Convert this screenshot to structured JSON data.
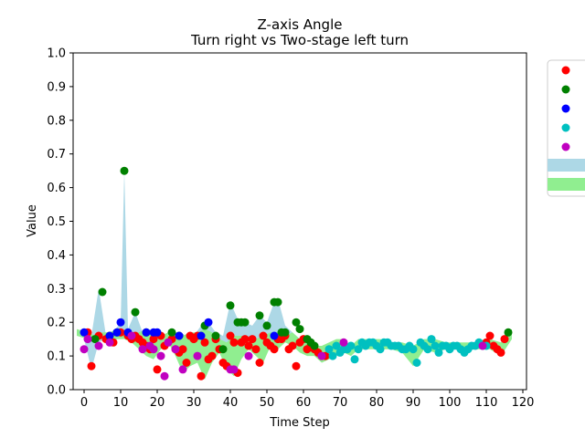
{
  "chart_data": {
    "type": "scatter",
    "title": "Z-axis Angle",
    "subtitle": "Turn right vs Two-stage left turn",
    "xlabel": "Time Step",
    "ylabel": "Value",
    "xlim": [
      -3,
      121
    ],
    "ylim": [
      0,
      1.0
    ],
    "xticks": [
      0,
      10,
      20,
      30,
      40,
      50,
      60,
      70,
      80,
      90,
      100,
      110,
      120
    ],
    "yticks": [
      0.0,
      0.1,
      0.2,
      0.3,
      0.4,
      0.5,
      0.6,
      0.7,
      0.8,
      0.9,
      1.0
    ],
    "grid": false,
    "legend_position": "outside-right",
    "bands": [
      {
        "name": "",
        "color": "#add8e6",
        "x": [
          0,
          2,
          4,
          6,
          8,
          10,
          11,
          12,
          14,
          16,
          18,
          20,
          22,
          24,
          26,
          28,
          30,
          32,
          34,
          36,
          38,
          40,
          42,
          44,
          46,
          48,
          50,
          52,
          53,
          55,
          57,
          59,
          61,
          63,
          65,
          66
        ],
        "lower": [
          0.15,
          0.06,
          0.14,
          0.15,
          0.16,
          0.16,
          0.16,
          0.15,
          0.14,
          0.13,
          0.12,
          0.11,
          0.13,
          0.15,
          0.12,
          0.11,
          0.15,
          0.15,
          0.14,
          0.13,
          0.11,
          0.1,
          0.12,
          0.14,
          0.13,
          0.14,
          0.14,
          0.15,
          0.16,
          0.15,
          0.14,
          0.13,
          0.12,
          0.11,
          0.09,
          0.09
        ],
        "upper": [
          0.17,
          0.16,
          0.3,
          0.16,
          0.17,
          0.2,
          0.65,
          0.18,
          0.23,
          0.17,
          0.16,
          0.17,
          0.16,
          0.17,
          0.17,
          0.16,
          0.16,
          0.19,
          0.2,
          0.17,
          0.16,
          0.26,
          0.21,
          0.2,
          0.19,
          0.22,
          0.2,
          0.26,
          0.27,
          0.19,
          0.17,
          0.15,
          0.13,
          0.12,
          0.11,
          0.1
        ]
      },
      {
        "name": "",
        "color": "#90ee90",
        "x": [
          -2,
          1,
          3,
          5,
          7,
          9,
          11,
          13,
          15,
          17,
          19,
          21,
          23,
          25,
          27,
          29,
          31,
          33,
          35,
          37,
          39,
          41,
          43,
          45,
          47,
          49,
          51,
          53,
          55,
          57,
          59,
          61,
          63,
          65,
          67,
          69,
          71,
          73,
          75,
          78,
          81,
          84,
          87,
          90,
          93,
          96,
          99,
          102,
          105,
          108,
          111,
          114,
          117
        ],
        "lower": [
          0.16,
          0.15,
          0.15,
          0.15,
          0.14,
          0.15,
          0.15,
          0.14,
          0.12,
          0.1,
          0.09,
          0.12,
          0.14,
          0.1,
          0.05,
          0.07,
          0.08,
          0.03,
          0.08,
          0.11,
          0.06,
          0.04,
          0.09,
          0.12,
          0.1,
          0.08,
          0.13,
          0.12,
          0.14,
          0.13,
          0.11,
          0.1,
          0.1,
          0.08,
          0.09,
          0.1,
          0.11,
          0.1,
          0.12,
          0.12,
          0.12,
          0.12,
          0.11,
          0.07,
          0.12,
          0.11,
          0.12,
          0.12,
          0.12,
          0.12,
          0.12,
          0.1,
          0.15
        ],
        "upper": [
          0.18,
          0.17,
          0.16,
          0.17,
          0.17,
          0.18,
          0.17,
          0.16,
          0.17,
          0.18,
          0.16,
          0.16,
          0.17,
          0.17,
          0.16,
          0.17,
          0.17,
          0.18,
          0.17,
          0.15,
          0.14,
          0.16,
          0.16,
          0.15,
          0.15,
          0.16,
          0.17,
          0.17,
          0.16,
          0.17,
          0.15,
          0.14,
          0.13,
          0.13,
          0.14,
          0.15,
          0.15,
          0.13,
          0.15,
          0.15,
          0.15,
          0.14,
          0.14,
          0.13,
          0.15,
          0.15,
          0.14,
          0.14,
          0.14,
          0.14,
          0.15,
          0.14,
          0.18
        ]
      }
    ],
    "series": [
      {
        "color": "#ff0000",
        "x": [
          1,
          2,
          4,
          6,
          8,
          10,
          12,
          13,
          14,
          15,
          16,
          17,
          18,
          19,
          20,
          21,
          22,
          23,
          24,
          25,
          26,
          27,
          28,
          29,
          30,
          31,
          32,
          33,
          34,
          35,
          36,
          37,
          38,
          39,
          40,
          41,
          42,
          43,
          44,
          45,
          46,
          47,
          48,
          49,
          50,
          51,
          52,
          53,
          54,
          55,
          56,
          57,
          58,
          59,
          60,
          61,
          62,
          63,
          64,
          65,
          66,
          110,
          111,
          112,
          113,
          114,
          115
        ],
        "y": [
          0.17,
          0.07,
          0.16,
          0.15,
          0.14,
          0.17,
          0.16,
          0.15,
          0.16,
          0.15,
          0.14,
          0.13,
          0.12,
          0.15,
          0.06,
          0.16,
          0.13,
          0.14,
          0.15,
          0.12,
          0.11,
          0.12,
          0.08,
          0.16,
          0.15,
          0.16,
          0.04,
          0.14,
          0.09,
          0.1,
          0.15,
          0.12,
          0.08,
          0.07,
          0.16,
          0.14,
          0.05,
          0.14,
          0.15,
          0.13,
          0.15,
          0.12,
          0.08,
          0.16,
          0.14,
          0.13,
          0.12,
          0.15,
          0.15,
          0.16,
          0.12,
          0.13,
          0.07,
          0.14,
          0.15,
          0.12,
          0.13,
          0.12,
          0.11,
          0.1,
          0.1,
          0.14,
          0.16,
          0.13,
          0.12,
          0.11,
          0.15
        ]
      },
      {
        "color": "#008000",
        "x": [
          3,
          5,
          7,
          9,
          11,
          14,
          17,
          24,
          26,
          33,
          36,
          38,
          40,
          42,
          43,
          44,
          48,
          50,
          52,
          53,
          54,
          55,
          58,
          59,
          61,
          62,
          63,
          116
        ],
        "y": [
          0.15,
          0.29,
          0.16,
          0.17,
          0.65,
          0.23,
          0.17,
          0.17,
          0.16,
          0.19,
          0.16,
          0.12,
          0.25,
          0.2,
          0.2,
          0.2,
          0.22,
          0.19,
          0.26,
          0.26,
          0.17,
          0.17,
          0.2,
          0.18,
          0.15,
          0.14,
          0.13,
          0.17
        ]
      },
      {
        "color": "#0000ff",
        "x": [
          0,
          7,
          9,
          10,
          12,
          17,
          19,
          20,
          26,
          32,
          34,
          52
        ],
        "y": [
          0.17,
          0.16,
          0.17,
          0.2,
          0.17,
          0.17,
          0.17,
          0.17,
          0.16,
          0.16,
          0.2,
          0.16
        ]
      },
      {
        "color": "#00c0c0",
        "x": [
          67,
          68,
          69,
          70,
          71,
          72,
          73,
          74,
          75,
          76,
          77,
          78,
          79,
          80,
          81,
          82,
          83,
          84,
          85,
          86,
          87,
          88,
          89,
          90,
          91,
          92,
          93,
          94,
          95,
          96,
          97,
          98,
          99,
          100,
          101,
          102,
          103,
          104,
          105,
          106,
          107,
          108,
          109,
          110
        ],
        "y": [
          0.12,
          0.1,
          0.13,
          0.11,
          0.12,
          0.12,
          0.13,
          0.09,
          0.12,
          0.14,
          0.13,
          0.14,
          0.14,
          0.13,
          0.12,
          0.14,
          0.14,
          0.13,
          0.13,
          0.13,
          0.12,
          0.12,
          0.13,
          0.12,
          0.08,
          0.14,
          0.13,
          0.12,
          0.15,
          0.13,
          0.11,
          0.13,
          0.13,
          0.12,
          0.13,
          0.13,
          0.12,
          0.11,
          0.12,
          0.13,
          0.13,
          0.14,
          0.13,
          0.13
        ]
      },
      {
        "color": "#c000c0",
        "x": [
          0,
          1,
          4,
          7,
          13,
          16,
          18,
          19,
          21,
          22,
          23,
          25,
          27,
          31,
          40,
          41,
          45,
          65,
          71,
          109
        ],
        "y": [
          0.12,
          0.15,
          0.13,
          0.14,
          0.16,
          0.12,
          0.13,
          0.12,
          0.1,
          0.04,
          0.14,
          0.12,
          0.06,
          0.1,
          0.06,
          0.06,
          0.1,
          0.1,
          0.14,
          0.13
        ]
      }
    ]
  }
}
